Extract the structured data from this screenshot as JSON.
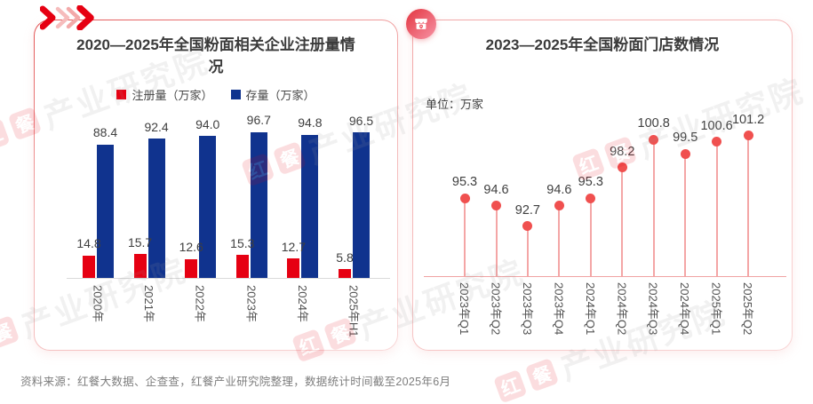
{
  "left_panel": {
    "title": "2020—2025年全国粉面相关企业注册量情况"
  },
  "right_panel": {
    "title": "2023—2025年全国粉面门店数情况",
    "unit_label": "单位：万家"
  },
  "source_note": "资料来源：红餐大数据、企查查，红餐产业研究院整理，数据统计时间截至2025年6月",
  "watermark": {
    "logo_chars": [
      "红",
      "餐"
    ],
    "text": "产业研究院"
  },
  "colors": {
    "registered_red": "#e60012",
    "stock_blue": "#10338e",
    "lollipop_red": "#f0504f",
    "stem_pink": "#f4a6a6"
  },
  "chart_data": [
    {
      "type": "bar",
      "title": "2020—2025年全国粉面相关企业注册量情况",
      "categories": [
        "2020年",
        "2021年",
        "2022年",
        "2023年",
        "2024年",
        "2025年H1"
      ],
      "series": [
        {
          "name": "注册量（万家）",
          "color": "#e60012",
          "values": [
            14.8,
            15.7,
            12.6,
            15.3,
            12.7,
            5.8
          ]
        },
        {
          "name": "存量（万家）",
          "color": "#10338e",
          "values": [
            88.4,
            92.4,
            94.0,
            96.7,
            94.8,
            96.5
          ]
        }
      ],
      "ylim": [
        0,
        100
      ],
      "grid": false,
      "legend_position": "top",
      "value_labels": true
    },
    {
      "type": "scatter",
      "style": "lollipop",
      "title": "2023—2025年全国粉面门店数情况",
      "unit": "单位：万家",
      "categories": [
        "2023年Q1",
        "2023年Q2",
        "2023年Q3",
        "2023年Q4",
        "2024年Q1",
        "2024年Q2",
        "2024年Q3",
        "2024年Q4",
        "2025年Q1",
        "2025年Q2"
      ],
      "values": [
        95.3,
        94.6,
        92.7,
        94.6,
        95.3,
        98.2,
        100.8,
        99.5,
        100.6,
        101.2
      ],
      "ylim": [
        88,
        104
      ],
      "grid": false,
      "value_labels": true
    }
  ]
}
